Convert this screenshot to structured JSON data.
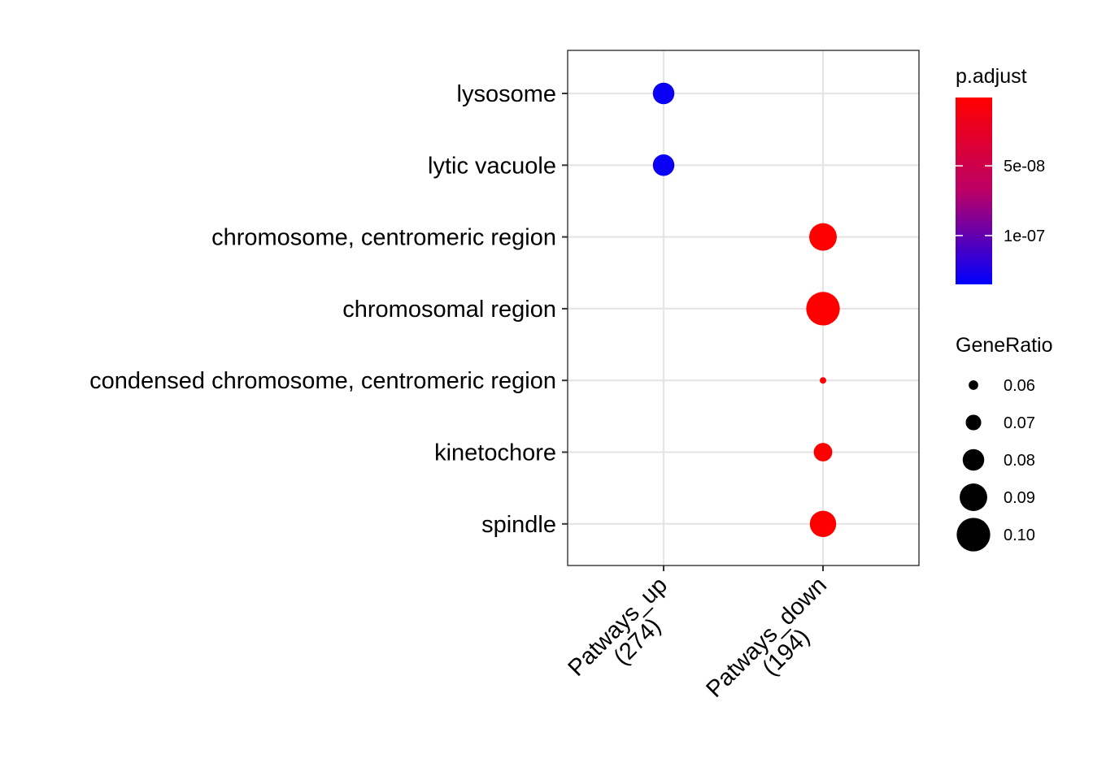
{
  "chart_data": {
    "type": "scatter",
    "title": "",
    "xlabel": "",
    "ylabel": "",
    "categories_x": [
      {
        "line1": "Patways_up",
        "line2": "(274)"
      },
      {
        "line1": "Patways_down",
        "line2": "(194)"
      }
    ],
    "categories_y": [
      "lysosome",
      "lytic vacuole",
      "chromosome, centromeric region",
      "chromosomal region",
      "condensed chromosome, centromeric region",
      "kinetochore",
      "spindle"
    ],
    "points": [
      {
        "x": "Patways_up",
        "y": "lysosome",
        "gene_ratio": 0.08,
        "p_adjust": 1.3e-07
      },
      {
        "x": "Patways_up",
        "y": "lytic vacuole",
        "gene_ratio": 0.08,
        "p_adjust": 1.3e-07
      },
      {
        "x": "Patways_down",
        "y": "chromosome, centromeric region",
        "gene_ratio": 0.09,
        "p_adjust": 1e-09
      },
      {
        "x": "Patways_down",
        "y": "chromosomal region",
        "gene_ratio": 0.1,
        "p_adjust": 1e-09
      },
      {
        "x": "Patways_down",
        "y": "condensed chromosome, centromeric region",
        "gene_ratio": 0.055,
        "p_adjust": 1e-09
      },
      {
        "x": "Patways_down",
        "y": "kinetochore",
        "gene_ratio": 0.075,
        "p_adjust": 1e-09
      },
      {
        "x": "Patways_down",
        "y": "spindle",
        "gene_ratio": 0.088,
        "p_adjust": 1e-09
      }
    ],
    "grid": true,
    "color_legend": {
      "title": "p.adjust",
      "low_color": "#ff0000",
      "high_color": "#0000ff",
      "range": [
        1e-09,
        1.35e-07
      ],
      "ticks": [
        {
          "label": "5e-08",
          "value": 5e-08
        },
        {
          "label": "1e-07",
          "value": 1e-07
        }
      ]
    },
    "size_legend": {
      "title": "GeneRatio",
      "entries": [
        {
          "label": "0.06",
          "value": 0.06
        },
        {
          "label": "0.07",
          "value": 0.07
        },
        {
          "label": "0.08",
          "value": 0.08
        },
        {
          "label": "0.09",
          "value": 0.09
        },
        {
          "label": "0.10",
          "value": 0.1
        }
      ]
    },
    "legend_position": "right"
  }
}
